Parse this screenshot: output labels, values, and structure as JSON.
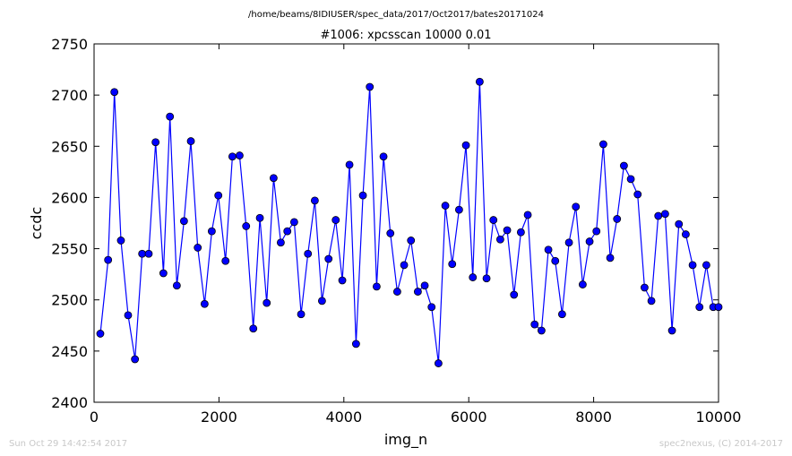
{
  "header": {
    "path": "/home/beams/8IDIUSER/spec_data/2017/Oct2017/bates20171024"
  },
  "footer": {
    "timestamp": "Sun Oct 29 14:42:54 2017",
    "credit": "spec2nexus, (C) 2014-2017"
  },
  "chart_data": {
    "type": "line",
    "title": "#1006: xpcsscan 10000 0.01",
    "xlabel": "img_n",
    "ylabel": "ccdc",
    "xlim": [
      0,
      10000
    ],
    "ylim": [
      2400,
      2750
    ],
    "xticks": [
      "0",
      "2000",
      "4000",
      "6000",
      "8000",
      "10000"
    ],
    "yticks": [
      "2400",
      "2450",
      "2500",
      "2550",
      "2600",
      "2650",
      "2700",
      "2750"
    ],
    "grid": false,
    "marker": "circle",
    "color": "#0000ff",
    "series": [
      {
        "x": [
          100,
          225,
          325,
          430,
          545,
          655,
          770,
          875,
          985,
          1110,
          1215,
          1325,
          1440,
          1550,
          1660,
          1770,
          1885,
          1990,
          2105,
          2215,
          2330,
          2435,
          2550,
          2655,
          2765,
          2875,
          2990,
          3095,
          3205,
          3315,
          3425,
          3535,
          3650,
          3755,
          3870,
          3975,
          4090,
          4195,
          4305,
          4415,
          4525,
          4635,
          4745,
          4855,
          4965,
          5075,
          5185,
          5295,
          5405,
          5515,
          5625,
          5735,
          5845,
          5955,
          6065,
          6175,
          6285,
          6395,
          6505,
          6615,
          6725,
          6835,
          6945,
          7055,
          7165,
          7275,
          7385,
          7495,
          7605,
          7715,
          7825,
          7935,
          8045,
          8155,
          8265,
          8375,
          8485,
          8595,
          8705,
          8815,
          8925,
          9035,
          9145,
          9255,
          9365,
          9475,
          9585,
          9695,
          9805,
          9915,
          10000
        ],
        "y": [
          2467,
          2539,
          2703,
          2558,
          2485,
          2442,
          2545,
          2545,
          2654,
          2526,
          2679,
          2514,
          2577,
          2655,
          2551,
          2496,
          2567,
          2602,
          2538,
          2640,
          2641,
          2572,
          2472,
          2580,
          2497,
          2619,
          2556,
          2567,
          2576,
          2486,
          2545,
          2597,
          2499,
          2540,
          2578,
          2519,
          2632,
          2457,
          2602,
          2708,
          2513,
          2640,
          2565,
          2508,
          2534,
          2558,
          2508,
          2514,
          2493,
          2438,
          2592,
          2535,
          2588,
          2651,
          2522,
          2713,
          2521,
          2578,
          2559,
          2568,
          2505,
          2566,
          2583,
          2476,
          2470,
          2549,
          2538,
          2486,
          2556,
          2591,
          2515,
          2557,
          2567,
          2652,
          2541,
          2579,
          2631,
          2618,
          2603,
          2512,
          2499,
          2582,
          2584,
          2470,
          2574,
          2564,
          2534,
          2493,
          2534,
          2493,
          2493
        ]
      }
    ]
  }
}
